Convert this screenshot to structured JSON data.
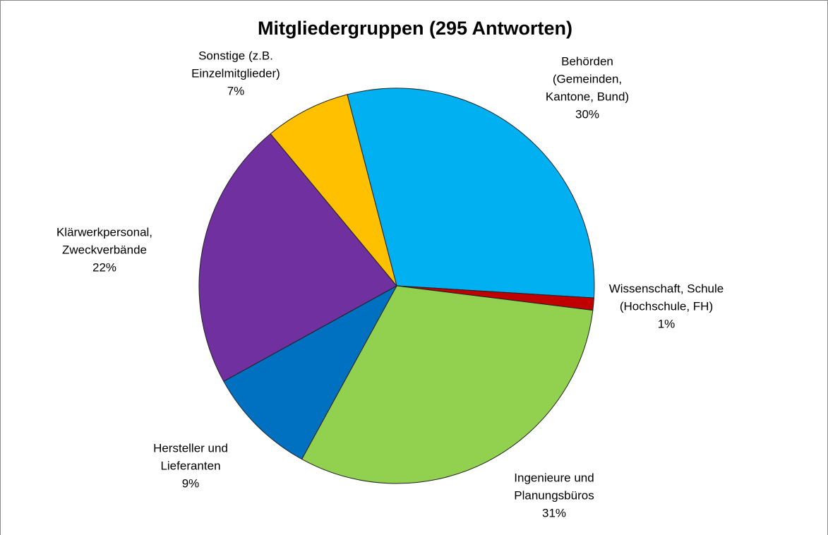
{
  "chart_data": {
    "type": "pie",
    "title": "Mitgliedergruppen (295 Antworten)",
    "categories": [
      [
        "Behörden",
        "(Gemeinden,",
        "Kantone, Bund)"
      ],
      [
        "Wissenschaft, Schule",
        "(Hochschule, FH)"
      ],
      [
        "Ingenieure und",
        "Planungsbüros"
      ],
      [
        "Hersteller und",
        "Lieferanten"
      ],
      [
        "Klärwerkpersonal,",
        "Zweckverbände"
      ],
      [
        "Sonstige (z.B.",
        "Einzelmitglieder)"
      ]
    ],
    "values": [
      30,
      1,
      31,
      9,
      22,
      7
    ],
    "value_labels": [
      "30%",
      "1%",
      "31%",
      "9%",
      "22%",
      "7%"
    ],
    "colors": [
      "#00b0f0",
      "#c00000",
      "#92d050",
      "#0070c0",
      "#7030a0",
      "#ffc000"
    ]
  }
}
